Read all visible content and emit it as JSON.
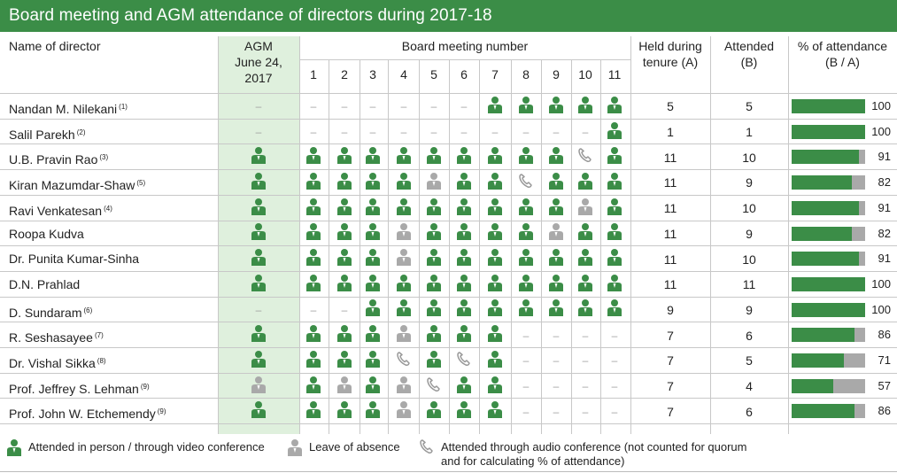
{
  "title": "Board meeting and AGM attendance of directors during 2017-18",
  "headers": {
    "name": "Name of director",
    "agm_line1": "AGM",
    "agm_line2": "June 24,",
    "agm_line3": "2017",
    "board": "Board meeting number",
    "held_line1": "Held during",
    "held_line2": "tenure (A)",
    "attended_line1": "Attended",
    "attended_line2": "(B)",
    "pct_line1": "% of attendance",
    "pct_line2": "(B / A)"
  },
  "meeting_numbers": [
    "1",
    "2",
    "3",
    "4",
    "5",
    "6",
    "7",
    "8",
    "9",
    "10",
    "11"
  ],
  "legend_codes": {
    "P": "attended in person / video",
    "L": "leave of absence",
    "A": "audio conference",
    "-": "not applicable"
  },
  "colors": {
    "green": "#3b8d47",
    "grey": "#a9a9a9",
    "agm_bg": "#dff0dd"
  },
  "directors": [
    {
      "name": "Nandan M. Nilekani",
      "note": "(1)",
      "agm": "-",
      "meetings": [
        "-",
        "-",
        "-",
        "-",
        "-",
        "-",
        "P",
        "P",
        "P",
        "P",
        "P"
      ],
      "held": "5",
      "attended": "5",
      "percent": 100
    },
    {
      "name": "Salil Parekh",
      "note": "(2)",
      "agm": "-",
      "meetings": [
        "-",
        "-",
        "-",
        "-",
        "-",
        "-",
        "-",
        "-",
        "-",
        "-",
        "P"
      ],
      "held": "1",
      "attended": "1",
      "percent": 100
    },
    {
      "name": "U.B. Pravin Rao",
      "note": "(3)",
      "agm": "P",
      "meetings": [
        "P",
        "P",
        "P",
        "P",
        "P",
        "P",
        "P",
        "P",
        "P",
        "A",
        "P"
      ],
      "held": "11",
      "attended": "10",
      "percent": 91
    },
    {
      "name": "Kiran Mazumdar-Shaw",
      "note": "(5)",
      "agm": "P",
      "meetings": [
        "P",
        "P",
        "P",
        "P",
        "L",
        "P",
        "P",
        "A",
        "P",
        "P",
        "P"
      ],
      "held": "11",
      "attended": "9",
      "percent": 82
    },
    {
      "name": "Ravi Venkatesan",
      "note": "(4)",
      "agm": "P",
      "meetings": [
        "P",
        "P",
        "P",
        "P",
        "P",
        "P",
        "P",
        "P",
        "P",
        "L",
        "P"
      ],
      "held": "11",
      "attended": "10",
      "percent": 91
    },
    {
      "name": "Roopa Kudva",
      "note": "",
      "agm": "P",
      "meetings": [
        "P",
        "P",
        "P",
        "L",
        "P",
        "P",
        "P",
        "P",
        "L",
        "P",
        "P"
      ],
      "held": "11",
      "attended": "9",
      "percent": 82
    },
    {
      "name": "Dr. Punita Kumar-Sinha",
      "note": "",
      "agm": "P",
      "meetings": [
        "P",
        "P",
        "P",
        "L",
        "P",
        "P",
        "P",
        "P",
        "P",
        "P",
        "P"
      ],
      "held": "11",
      "attended": "10",
      "percent": 91
    },
    {
      "name": "D.N. Prahlad",
      "note": "",
      "agm": "P",
      "meetings": [
        "P",
        "P",
        "P",
        "P",
        "P",
        "P",
        "P",
        "P",
        "P",
        "P",
        "P"
      ],
      "held": "11",
      "attended": "11",
      "percent": 100
    },
    {
      "name": "D. Sundaram",
      "note": "(6)",
      "agm": "-",
      "meetings": [
        "-",
        "-",
        "P",
        "P",
        "P",
        "P",
        "P",
        "P",
        "P",
        "P",
        "P"
      ],
      "held": "9",
      "attended": "9",
      "percent": 100
    },
    {
      "name": "R. Seshasayee",
      "note": "(7)",
      "agm": "P",
      "meetings": [
        "P",
        "P",
        "P",
        "L",
        "P",
        "P",
        "P",
        "-",
        "-",
        "-",
        "-"
      ],
      "held": "7",
      "attended": "6",
      "percent": 86
    },
    {
      "name": "Dr. Vishal Sikka",
      "note": "(8)",
      "agm": "P",
      "meetings": [
        "P",
        "P",
        "P",
        "A",
        "P",
        "A",
        "P",
        "-",
        "-",
        "-",
        "-"
      ],
      "held": "7",
      "attended": "5",
      "percent": 71
    },
    {
      "name": "Prof. Jeffrey S. Lehman",
      "note": "(9)",
      "agm": "L",
      "meetings": [
        "P",
        "L",
        "P",
        "L",
        "A",
        "P",
        "P",
        "-",
        "-",
        "-",
        "-"
      ],
      "held": "7",
      "attended": "4",
      "percent": 57
    },
    {
      "name": "Prof. John W. Etchemendy",
      "note": "(9)",
      "agm": "P",
      "meetings": [
        "P",
        "P",
        "P",
        "L",
        "P",
        "P",
        "P",
        "-",
        "-",
        "-",
        "-"
      ],
      "held": "7",
      "attended": "6",
      "percent": 86
    }
  ],
  "legend": {
    "in_person": "Attended in person / through video conference",
    "leave": "Leave of absence",
    "audio_line1": "Attended through audio conference (not counted for quorum",
    "audio_line2": "and for calculating % of attendance)"
  }
}
